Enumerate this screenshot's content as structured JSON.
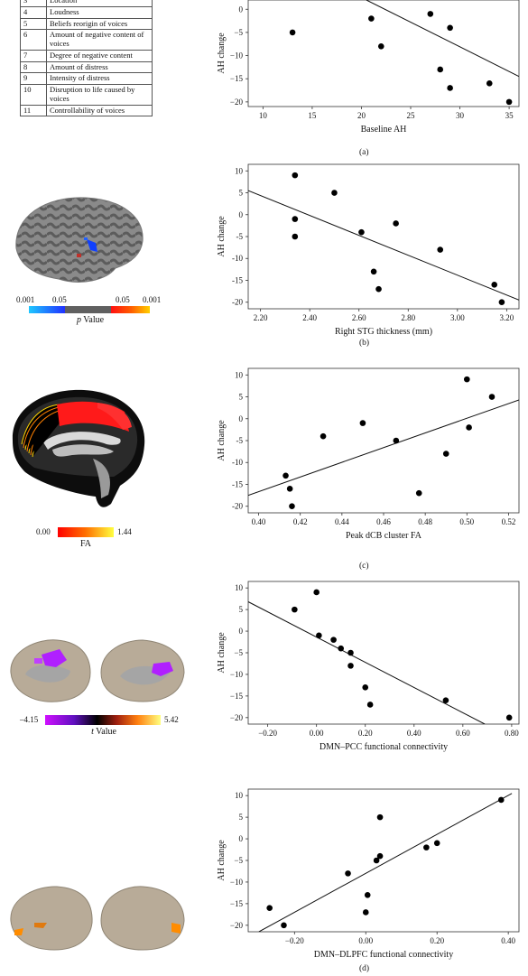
{
  "table": {
    "rows": [
      {
        "num": "3",
        "text": "Location"
      },
      {
        "num": "4",
        "text": "Loudness"
      },
      {
        "num": "5",
        "text": "Beliefs reorigin of voices"
      },
      {
        "num": "6",
        "text": "Amount of negative content of voices"
      },
      {
        "num": "7",
        "text": "Degree of negative content"
      },
      {
        "num": "8",
        "text": "Amount of distress"
      },
      {
        "num": "9",
        "text": "Intensity of distress"
      },
      {
        "num": "10",
        "text": "Disruption to life caused by voices"
      },
      {
        "num": "11",
        "text": "Controllability of voices"
      }
    ]
  },
  "brains": {
    "b": {
      "min": "0.001",
      "mid1": "0.05",
      "mid2": "0.05",
      "max": "0.001",
      "label_italic": "p",
      "label_rest": " Value"
    },
    "c": {
      "min": "0.00",
      "max": "1.44",
      "label": "FA"
    },
    "d": {
      "min": "–4.15",
      "max": "5.42",
      "label_italic": "t",
      "label_rest": " Value"
    }
  },
  "captions": {
    "a": "(a)",
    "b": "(b)",
    "c": "(c)",
    "d": "(d)"
  },
  "chart_data": [
    {
      "id": "a",
      "type": "scatter",
      "xlabel": "Baseline AH",
      "ylabel": "AH change",
      "xlim": [
        8.5,
        36
      ],
      "ylim": [
        -21,
        2
      ],
      "xticks": [
        10,
        15,
        20,
        25,
        30,
        35
      ],
      "xtick_labels": [
        "10",
        "15",
        "20",
        "25",
        "30",
        "35"
      ],
      "yticks": [
        0,
        -5,
        -10,
        -15,
        -20
      ],
      "ytick_labels": [
        "0",
        "−5",
        "−10",
        "−15",
        "−20"
      ],
      "points": [
        [
          13,
          -5
        ],
        [
          21,
          -2
        ],
        [
          22,
          -8
        ],
        [
          27,
          -1
        ],
        [
          28,
          -13
        ],
        [
          29,
          -4
        ],
        [
          29,
          -17
        ],
        [
          33,
          -16
        ],
        [
          35,
          -20
        ]
      ],
      "fit": [
        [
          20.5,
          2
        ],
        [
          36,
          -14.5
        ]
      ]
    },
    {
      "id": "b",
      "type": "scatter",
      "xlabel": "Right STG thickness (mm)",
      "ylabel": "AH change",
      "xlim": [
        2.15,
        3.25
      ],
      "ylim": [
        -21.5,
        11.5
      ],
      "xticks": [
        2.2,
        2.4,
        2.6,
        2.8,
        3.0,
        3.2
      ],
      "xtick_labels": [
        "2.20",
        "2.40",
        "2.60",
        "2.80",
        "3.00",
        "3.20"
      ],
      "yticks": [
        10,
        5,
        0,
        -5,
        -10,
        -15,
        -20
      ],
      "ytick_labels": [
        "10",
        "5",
        "0",
        "-5",
        "-10",
        "-15",
        "-20"
      ],
      "points": [
        [
          2.34,
          9
        ],
        [
          2.34,
          -1
        ],
        [
          2.34,
          -5
        ],
        [
          2.5,
          5
        ],
        [
          2.61,
          -4
        ],
        [
          2.66,
          -13
        ],
        [
          2.68,
          -17
        ],
        [
          2.75,
          -2
        ],
        [
          2.93,
          -8
        ],
        [
          3.15,
          -16
        ],
        [
          3.18,
          -20
        ]
      ],
      "fit": [
        [
          2.15,
          5.5
        ],
        [
          3.25,
          -19.5
        ]
      ]
    },
    {
      "id": "c",
      "type": "scatter",
      "xlabel": "Peak dCB cluster FA",
      "ylabel": "AH change",
      "xlim": [
        0.395,
        0.525
      ],
      "ylim": [
        -21.5,
        11.5
      ],
      "xticks": [
        0.4,
        0.42,
        0.44,
        0.46,
        0.48,
        0.5,
        0.52
      ],
      "xtick_labels": [
        "0.40",
        "0.42",
        "0.44",
        "0.46",
        "0.48",
        "0.50",
        "0.52"
      ],
      "yticks": [
        10,
        5,
        0,
        -5,
        -10,
        -15,
        -20
      ],
      "ytick_labels": [
        "10",
        "5",
        "0",
        "-5",
        "-10",
        "-15",
        "-20"
      ],
      "points": [
        [
          0.413,
          -13
        ],
        [
          0.415,
          -16
        ],
        [
          0.416,
          -20
        ],
        [
          0.431,
          -4
        ],
        [
          0.45,
          -1
        ],
        [
          0.466,
          -5
        ],
        [
          0.477,
          -17
        ],
        [
          0.49,
          -8
        ],
        [
          0.5,
          9
        ],
        [
          0.501,
          -2
        ],
        [
          0.512,
          5
        ]
      ],
      "fit": [
        [
          0.395,
          -17.5
        ],
        [
          0.525,
          4.3
        ]
      ]
    },
    {
      "id": "d1",
      "type": "scatter",
      "xlabel": "DMN–PCC functional connectivity",
      "ylabel": "AH change",
      "xlim": [
        -0.28,
        0.83
      ],
      "ylim": [
        -21.5,
        11.5
      ],
      "xticks": [
        -0.2,
        0,
        0.2,
        0.4,
        0.6,
        0.8
      ],
      "xtick_labels": [
        "−0.20",
        "0.00",
        "0.20",
        "0.40",
        "0.60",
        "0.80"
      ],
      "yticks": [
        10,
        5,
        0,
        -5,
        -10,
        -15,
        -20
      ],
      "ytick_labels": [
        "10",
        "5",
        "0",
        "−5",
        "−10",
        "−15",
        "−20"
      ],
      "points": [
        [
          -0.09,
          5
        ],
        [
          0,
          9
        ],
        [
          0.01,
          -1
        ],
        [
          0.07,
          -2
        ],
        [
          0.1,
          -4
        ],
        [
          0.14,
          -5
        ],
        [
          0.14,
          -8
        ],
        [
          0.2,
          -13
        ],
        [
          0.22,
          -17
        ],
        [
          0.53,
          -16
        ],
        [
          0.79,
          -20
        ]
      ],
      "fit": [
        [
          -0.28,
          6.8
        ],
        [
          0.69,
          -21.5
        ]
      ]
    },
    {
      "id": "d2",
      "type": "scatter",
      "xlabel": "DMN–DLPFC functional connectivity",
      "ylabel": "AH change",
      "xlim": [
        -0.33,
        0.43
      ],
      "ylim": [
        -21.5,
        11.5
      ],
      "xticks": [
        -0.2,
        0,
        0.2,
        0.4
      ],
      "xtick_labels": [
        "−0.20",
        "0.00",
        "0.20",
        "0.40"
      ],
      "yticks": [
        10,
        5,
        0,
        -5,
        -10,
        -15,
        -20
      ],
      "ytick_labels": [
        "10",
        "5",
        "0",
        "−5",
        "−10",
        "−15",
        "−20"
      ],
      "points": [
        [
          -0.27,
          -16
        ],
        [
          -0.23,
          -20
        ],
        [
          -0.05,
          -8
        ],
        [
          0,
          -17
        ],
        [
          0.005,
          -13
        ],
        [
          0.03,
          -5
        ],
        [
          0.04,
          -4
        ],
        [
          0.04,
          5
        ],
        [
          0.17,
          -2
        ],
        [
          0.2,
          -1
        ],
        [
          0.38,
          9
        ]
      ],
      "fit": [
        [
          -0.3,
          -21.5
        ],
        [
          0.41,
          10.5
        ]
      ]
    }
  ]
}
